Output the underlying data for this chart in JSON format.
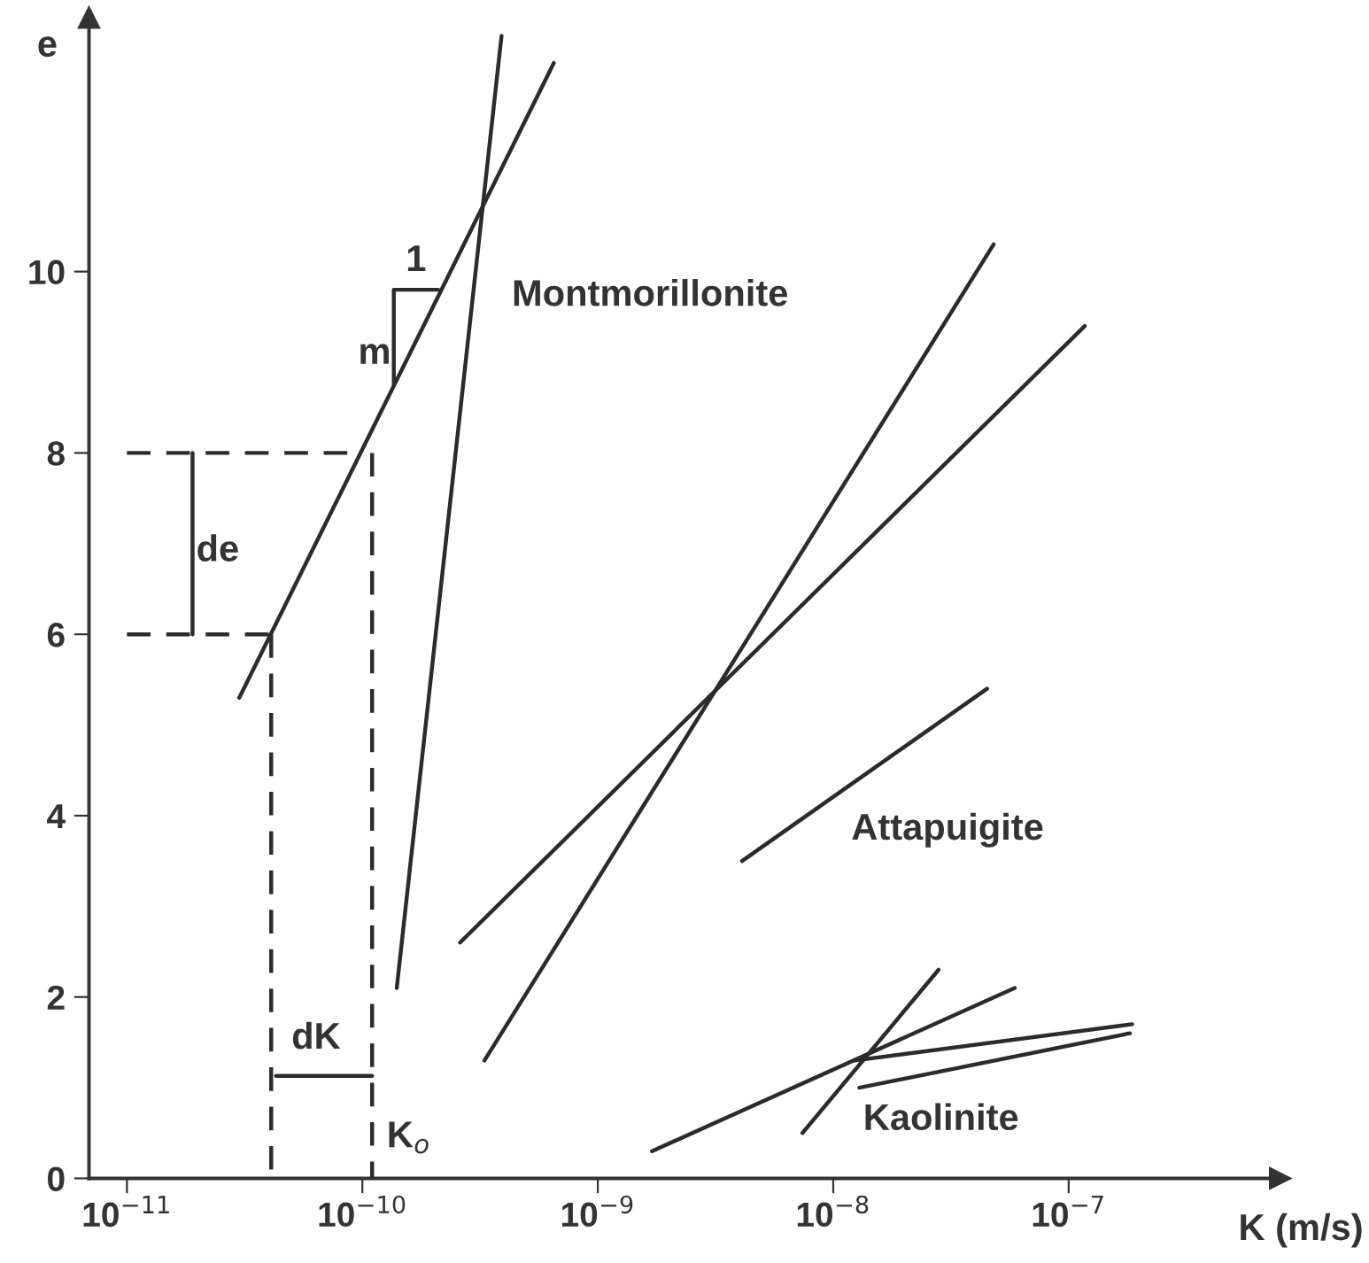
{
  "chart_data": {
    "type": "line",
    "xlabel": "K (m/s)",
    "ylabel": "e",
    "log": "x",
    "grid": false,
    "legend": false,
    "line_style": "solid",
    "marker": "none",
    "xlim": [
      6.9e-12,
      7.9e-07
    ],
    "ylim": [
      0,
      12.8
    ],
    "xticks": [
      {
        "value": 1e-11,
        "label": "10$^{−11}$"
      },
      {
        "value": 1e-10,
        "label": "10$^{−10}$"
      },
      {
        "value": 1e-09,
        "label": "10$^{−9}$"
      },
      {
        "value": 1e-08,
        "label": "10$^{−8}$"
      },
      {
        "value": 1e-07,
        "label": "10$^{−7}$"
      }
    ],
    "yticks": [
      0,
      2,
      4,
      6,
      8,
      10
    ],
    "series": [
      {
        "color": "#2b2b2b",
        "x": [
          3e-11,
          6.5e-10
        ],
        "values": [
          5.3,
          12.3
        ]
      },
      {
        "color": "#2b2b2b",
        "x": [
          1.4e-10,
          3.9e-10
        ],
        "values": [
          2.1,
          12.6
        ]
      },
      {
        "color": "#2b2b2b",
        "x": [
          3.3e-10,
          4.8e-08
        ],
        "values": [
          1.3,
          10.3
        ]
      },
      {
        "color": "#2b2b2b",
        "x": [
          2.6e-10,
          1.17e-07
        ],
        "values": [
          2.6,
          9.4
        ]
      },
      {
        "color": "#2b2b2b",
        "x": [
          4.1e-09,
          4.5e-08
        ],
        "values": [
          3.5,
          5.4
        ]
      },
      {
        "color": "#2b2b2b",
        "x": [
          1.7e-09,
          5.9e-08
        ],
        "values": [
          0.3,
          2.1
        ]
      },
      {
        "color": "#2b2b2b",
        "x": [
          7.4e-09,
          2.8e-08
        ],
        "values": [
          0.5,
          2.3
        ]
      },
      {
        "color": "#2b2b2b",
        "x": [
          1.23e-08,
          1.86e-07
        ],
        "values": [
          1.3,
          1.7
        ]
      },
      {
        "color": "#2b2b2b",
        "x": [
          1.29e-08,
          1.82e-07
        ],
        "values": [
          1.0,
          1.6
        ]
      },
      {
        "color": "#2b2b2b",
        "line_style": "dashed",
        "x": [
          1e-11,
          1e-10
        ],
        "values": [
          8,
          8
        ]
      },
      {
        "color": "#2b2b2b",
        "line_style": "dashed",
        "x": [
          1e-11,
          4.1e-11
        ],
        "values": [
          6,
          6
        ]
      },
      {
        "color": "#2b2b2b",
        "line_style": "dashed",
        "x": [
          4.1e-11,
          4.1e-11
        ],
        "values": [
          6,
          0
        ]
      },
      {
        "color": "#2b2b2b",
        "line_style": "dashed",
        "x": [
          1.1e-10,
          1.1e-10
        ],
        "values": [
          8,
          0
        ]
      },
      {
        "color": "#2b2b2b",
        "x": [
          1.9e-11,
          1.9e-11
        ],
        "values": [
          6,
          8
        ]
      },
      {
        "color": "#2b2b2b",
        "x": [
          4.3e-11,
          1.1e-10
        ],
        "values": [
          1.13,
          1.13
        ]
      },
      {
        "color": "#2b2b2b",
        "x": [
          2.1e-10,
          1.36e-10,
          1.36e-10
        ],
        "values": [
          9.8,
          9.8,
          8.75
        ]
      }
    ],
    "annotations": [
      "Montmorillonite",
      "Attapuigite",
      "Kaolinite",
      "m",
      "1",
      "de",
      "dK",
      "K$_{o}$"
    ]
  }
}
